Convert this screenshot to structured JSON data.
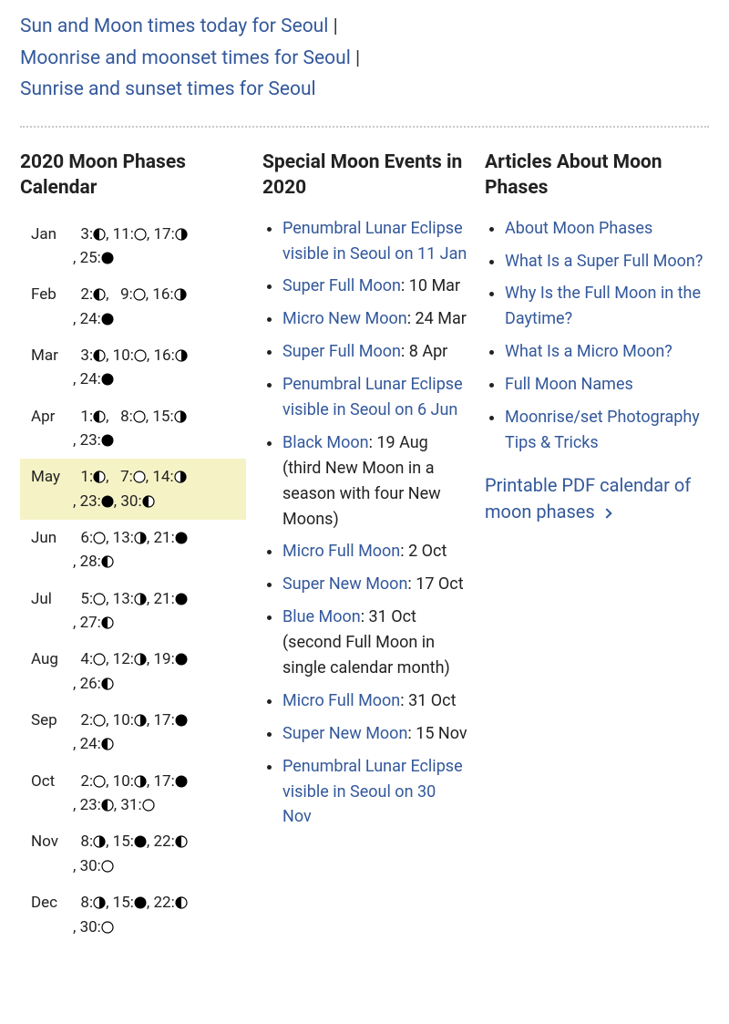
{
  "colors": {
    "link": "#33589b",
    "text": "#222222",
    "highlight_bg": "#f5f3c6",
    "moon_outline": "#000000",
    "full_moon_fill": "#ffffff",
    "dark_moon_fill": "#000000"
  },
  "toplinks": [
    "Sun and Moon times today for Seoul",
    "Moonrise and moonset times for Seoul",
    "Sunrise and sunset times for Seoul"
  ],
  "toplinks_separator": " | ",
  "calendar": {
    "heading": "2020 Moon Phases Calendar",
    "highlight_month": "May",
    "months": [
      {
        "name": "Jan",
        "phases": [
          {
            "day": 3,
            "phase": "first-quarter"
          },
          {
            "day": 11,
            "phase": "full"
          },
          {
            "day": 17,
            "phase": "last-quarter"
          },
          {
            "day": 25,
            "phase": "new"
          }
        ]
      },
      {
        "name": "Feb",
        "phases": [
          {
            "day": 2,
            "phase": "first-quarter"
          },
          {
            "day": 9,
            "phase": "full"
          },
          {
            "day": 16,
            "phase": "last-quarter"
          },
          {
            "day": 24,
            "phase": "new"
          }
        ]
      },
      {
        "name": "Mar",
        "phases": [
          {
            "day": 3,
            "phase": "first-quarter"
          },
          {
            "day": 10,
            "phase": "full"
          },
          {
            "day": 16,
            "phase": "last-quarter"
          },
          {
            "day": 24,
            "phase": "new"
          }
        ]
      },
      {
        "name": "Apr",
        "phases": [
          {
            "day": 1,
            "phase": "first-quarter"
          },
          {
            "day": 8,
            "phase": "full"
          },
          {
            "day": 15,
            "phase": "last-quarter"
          },
          {
            "day": 23,
            "phase": "new"
          }
        ]
      },
      {
        "name": "May",
        "phases": [
          {
            "day": 1,
            "phase": "first-quarter"
          },
          {
            "day": 7,
            "phase": "full"
          },
          {
            "day": 14,
            "phase": "last-quarter"
          },
          {
            "day": 23,
            "phase": "new"
          },
          {
            "day": 30,
            "phase": "first-quarter"
          }
        ]
      },
      {
        "name": "Jun",
        "phases": [
          {
            "day": 6,
            "phase": "full"
          },
          {
            "day": 13,
            "phase": "last-quarter"
          },
          {
            "day": 21,
            "phase": "new"
          },
          {
            "day": 28,
            "phase": "first-quarter"
          }
        ]
      },
      {
        "name": "Jul",
        "phases": [
          {
            "day": 5,
            "phase": "full"
          },
          {
            "day": 13,
            "phase": "last-quarter"
          },
          {
            "day": 21,
            "phase": "new"
          },
          {
            "day": 27,
            "phase": "first-quarter"
          }
        ]
      },
      {
        "name": "Aug",
        "phases": [
          {
            "day": 4,
            "phase": "full"
          },
          {
            "day": 12,
            "phase": "last-quarter"
          },
          {
            "day": 19,
            "phase": "new"
          },
          {
            "day": 26,
            "phase": "first-quarter"
          }
        ]
      },
      {
        "name": "Sep",
        "phases": [
          {
            "day": 2,
            "phase": "full"
          },
          {
            "day": 10,
            "phase": "last-quarter"
          },
          {
            "day": 17,
            "phase": "new"
          },
          {
            "day": 24,
            "phase": "first-quarter"
          }
        ]
      },
      {
        "name": "Oct",
        "phases": [
          {
            "day": 2,
            "phase": "full"
          },
          {
            "day": 10,
            "phase": "last-quarter"
          },
          {
            "day": 17,
            "phase": "new"
          },
          {
            "day": 23,
            "phase": "first-quarter"
          },
          {
            "day": 31,
            "phase": "full"
          }
        ]
      },
      {
        "name": "Nov",
        "phases": [
          {
            "day": 8,
            "phase": "last-quarter"
          },
          {
            "day": 15,
            "phase": "new"
          },
          {
            "day": 22,
            "phase": "first-quarter"
          },
          {
            "day": 30,
            "phase": "full"
          }
        ]
      },
      {
        "name": "Dec",
        "phases": [
          {
            "day": 8,
            "phase": "last-quarter"
          },
          {
            "day": 15,
            "phase": "new"
          },
          {
            "day": 22,
            "phase": "first-quarter"
          },
          {
            "day": 30,
            "phase": "full"
          }
        ]
      }
    ]
  },
  "events": {
    "heading": "Special Moon Events in 2020",
    "items": [
      {
        "link": "Penumbral Lunar Eclipse visible in Seoul on 11 Jan",
        "text": ""
      },
      {
        "link": "Super Full Moon",
        "text": ": 10 Mar"
      },
      {
        "link": "Micro New Moon",
        "text": ": 24 Mar"
      },
      {
        "link": "Super Full Moon",
        "text": ": 8 Apr"
      },
      {
        "link": "Penumbral Lunar Eclipse visible in Seoul on 6 Jun",
        "text": ""
      },
      {
        "link": "Black Moon",
        "text": ": 19 Aug (third New Moon in a season with four New Moons)"
      },
      {
        "link": "Micro Full Moon",
        "text": ": 2 Oct"
      },
      {
        "link": "Super New Moon",
        "text": ": 17 Oct"
      },
      {
        "link": "Blue Moon",
        "text": ": 31 Oct (second Full Moon in single calendar month)"
      },
      {
        "link": "Micro Full Moon",
        "text": ": 31 Oct"
      },
      {
        "link": "Super New Moon",
        "text": ": 15 Nov"
      },
      {
        "link": "Penumbral Lunar Eclipse visible in Seoul on 30 Nov",
        "text": ""
      }
    ]
  },
  "articles": {
    "heading": "Articles About Moon Phases",
    "items": [
      "About Moon Phases",
      "What Is a Super Full Moon?",
      "Why Is the Full Moon in the Daytime?",
      "What Is a Micro Moon?",
      "Full Moon Names",
      "Moonrise/set Photography Tips & Tricks"
    ],
    "pdf_link": "Printable PDF calendar of moon phases"
  }
}
